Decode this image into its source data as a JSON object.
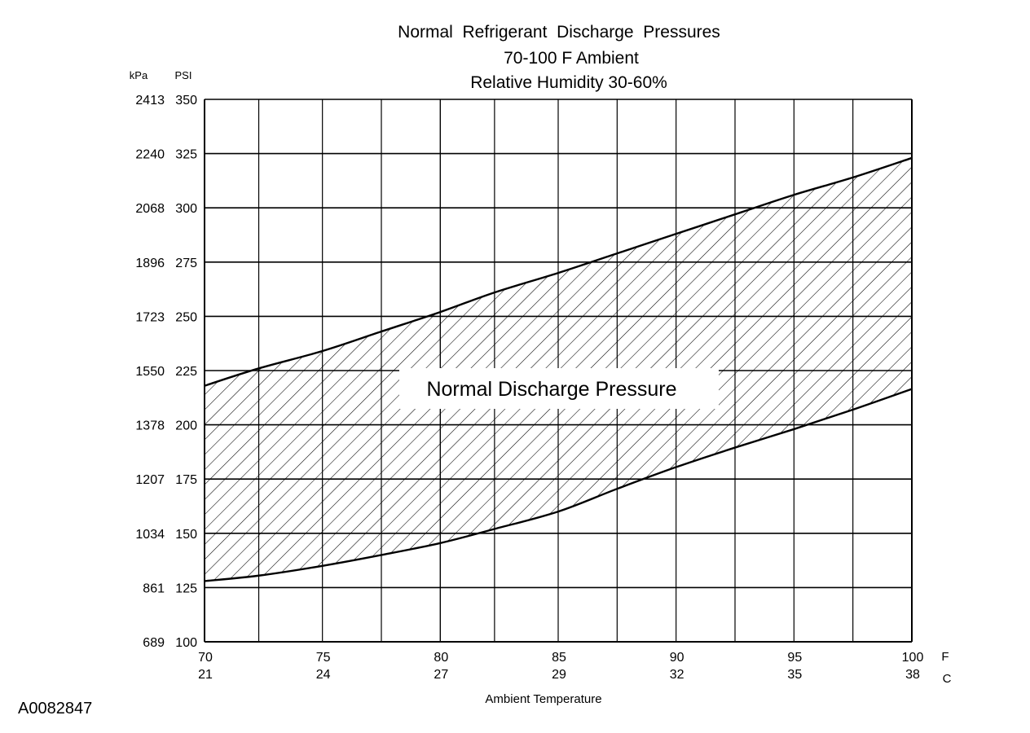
{
  "chart_data": {
    "type": "area",
    "title_lines": [
      "Normal  Refrigerant  Discharge  Pressures",
      "70-100 F Ambient",
      "Relative Humidity 30-60%"
    ],
    "left_axis_units": [
      "kPa",
      "PSI"
    ],
    "xlabel": "Ambient Temperature",
    "x_unit_labels": [
      "F",
      "C"
    ],
    "figure_id": "A0082847",
    "band_label": "Normal Discharge Pressure",
    "xlim": [
      70,
      100
    ],
    "ylim": [
      100,
      350
    ],
    "x_ticks_f": [
      "70",
      "75",
      "80",
      "85",
      "90",
      "95",
      "100"
    ],
    "x_ticks_c": [
      "21",
      "24",
      "27",
      "29",
      "32",
      "35",
      "38"
    ],
    "x_tick_values": [
      70,
      75,
      80,
      85,
      90,
      95,
      100
    ],
    "y_ticks_psi": [
      "100",
      "125",
      "150",
      "175",
      "200",
      "225",
      "250",
      "275",
      "300",
      "325",
      "350"
    ],
    "y_ticks_kpa": [
      "689",
      "861",
      "1034",
      "1207",
      "1378",
      "1550",
      "1723",
      "1896",
      "2068",
      "2240",
      "2413"
    ],
    "y_tick_values": [
      100,
      125,
      150,
      175,
      200,
      225,
      250,
      275,
      300,
      325,
      350
    ],
    "grid_x": [
      72.3,
      77.5,
      80,
      82.3,
      87.5,
      92.5,
      97.5
    ],
    "grid": true,
    "series": [
      {
        "x": [
          70,
          72.3,
          75,
          77.5,
          80,
          82.3,
          85,
          87.5,
          90,
          92.5,
          95,
          97.5,
          100
        ],
        "values": [
          218,
          226,
          234,
          243,
          252,
          261,
          270,
          279,
          288,
          297,
          306,
          314,
          323
        ]
      },
      {
        "x": [
          70,
          72.3,
          75,
          77.5,
          80,
          82.3,
          85,
          87.5,
          90,
          92.5,
          95,
          97.5,
          100
        ],
        "values": [
          128,
          130.5,
          135,
          140,
          145.5,
          152,
          160,
          170.5,
          180.5,
          189.5,
          198,
          207,
          216.5
        ]
      }
    ]
  }
}
